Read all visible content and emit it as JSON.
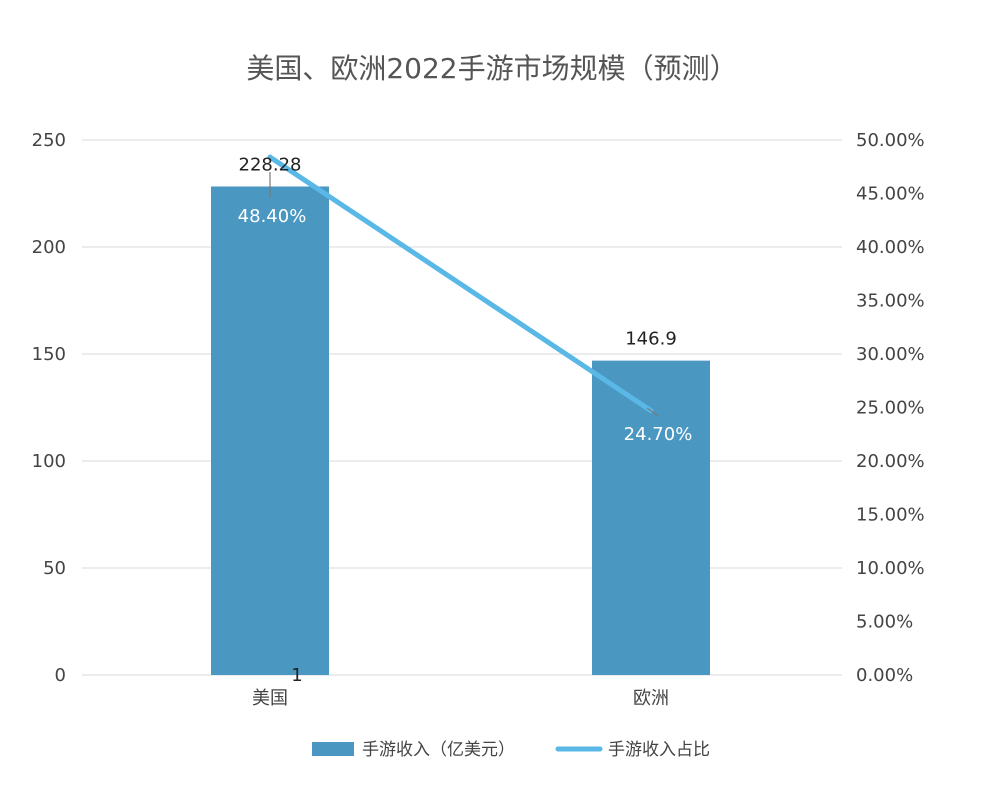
{
  "chart_data": {
    "type": "bar",
    "title": "美国、欧洲2022手游市场规模（预测）",
    "categories": [
      "美国",
      "欧洲"
    ],
    "series": [
      {
        "name": "手游收入（亿美元）",
        "type": "bar",
        "axis": "left",
        "values": [
          228.28,
          146.9
        ],
        "data_labels": [
          "228.28",
          "146.9"
        ],
        "color": "#4a97c2"
      },
      {
        "name": "手游收入占比",
        "type": "line",
        "axis": "right",
        "values": [
          48.4,
          24.7
        ],
        "data_labels": [
          "48.40%",
          "24.70%"
        ],
        "color": "#5ab8e6"
      }
    ],
    "y_left": {
      "lim": [
        0,
        250
      ],
      "ticks": [
        "0",
        "50",
        "100",
        "150",
        "200",
        "250"
      ]
    },
    "y_right": {
      "lim": [
        0,
        50
      ],
      "ticks": [
        "0.00%",
        "5.00%",
        "10.00%",
        "15.00%",
        "20.00%",
        "25.00%",
        "30.00%",
        "35.00%",
        "40.00%",
        "45.00%",
        "50.00%"
      ]
    },
    "annotations": [
      "1"
    ],
    "grid": true,
    "legend_position": "bottom"
  }
}
